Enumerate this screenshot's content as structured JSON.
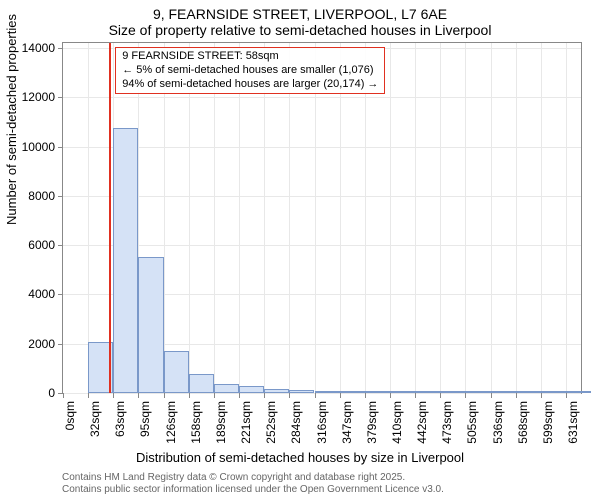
{
  "title": {
    "line1": "9, FEARNSIDE STREET, LIVERPOOL, L7 6AE",
    "line2": "Size of property relative to semi-detached houses in Liverpool"
  },
  "y_axis": {
    "label": "Number of semi-detached properties",
    "min": 0,
    "max": 14200,
    "ticks": [
      0,
      2000,
      4000,
      6000,
      8000,
      10000,
      12000,
      14000
    ]
  },
  "x_axis": {
    "label": "Distribution of semi-detached houses by size in Liverpool",
    "min": 0,
    "max": 650,
    "tick_step": 31.56,
    "tick_labels": [
      "0sqm",
      "32sqm",
      "63sqm",
      "95sqm",
      "126sqm",
      "158sqm",
      "189sqm",
      "221sqm",
      "252sqm",
      "284sqm",
      "316sqm",
      "347sqm",
      "379sqm",
      "410sqm",
      "442sqm",
      "473sqm",
      "505sqm",
      "536sqm",
      "568sqm",
      "599sqm",
      "631sqm"
    ]
  },
  "histogram": {
    "type": "histogram",
    "bin_width": 31.56,
    "values": [
      0,
      2050,
      10750,
      5500,
      1700,
      780,
      370,
      280,
      180,
      120,
      70,
      50,
      30,
      25,
      20,
      18,
      15,
      10,
      8,
      5,
      3
    ],
    "bar_fill": "#d5e2f6",
    "bar_stroke": "#7a98c9",
    "background": "#ffffff",
    "grid_color": "#e8e8e8"
  },
  "reference_line": {
    "x_value": 58,
    "color": "#e03020"
  },
  "callout": {
    "border_color": "#e03020",
    "line1": "9 FEARNSIDE STREET: 58sqm",
    "line2": "← 5% of semi-detached houses are smaller (1,076)",
    "line3": "94% of semi-detached houses are larger (20,174) →"
  },
  "footer": {
    "line1": "Contains HM Land Registry data © Crown copyright and database right 2025.",
    "line2": "Contains public sector information licensed under the Open Government Licence v3.0.",
    "color": "#666666"
  },
  "styling": {
    "title_fontsize": 14,
    "axis_label_fontsize": 13,
    "tick_fontsize": 12,
    "callout_fontsize": 11,
    "footer_fontsize": 10,
    "axis_color": "#888888"
  }
}
